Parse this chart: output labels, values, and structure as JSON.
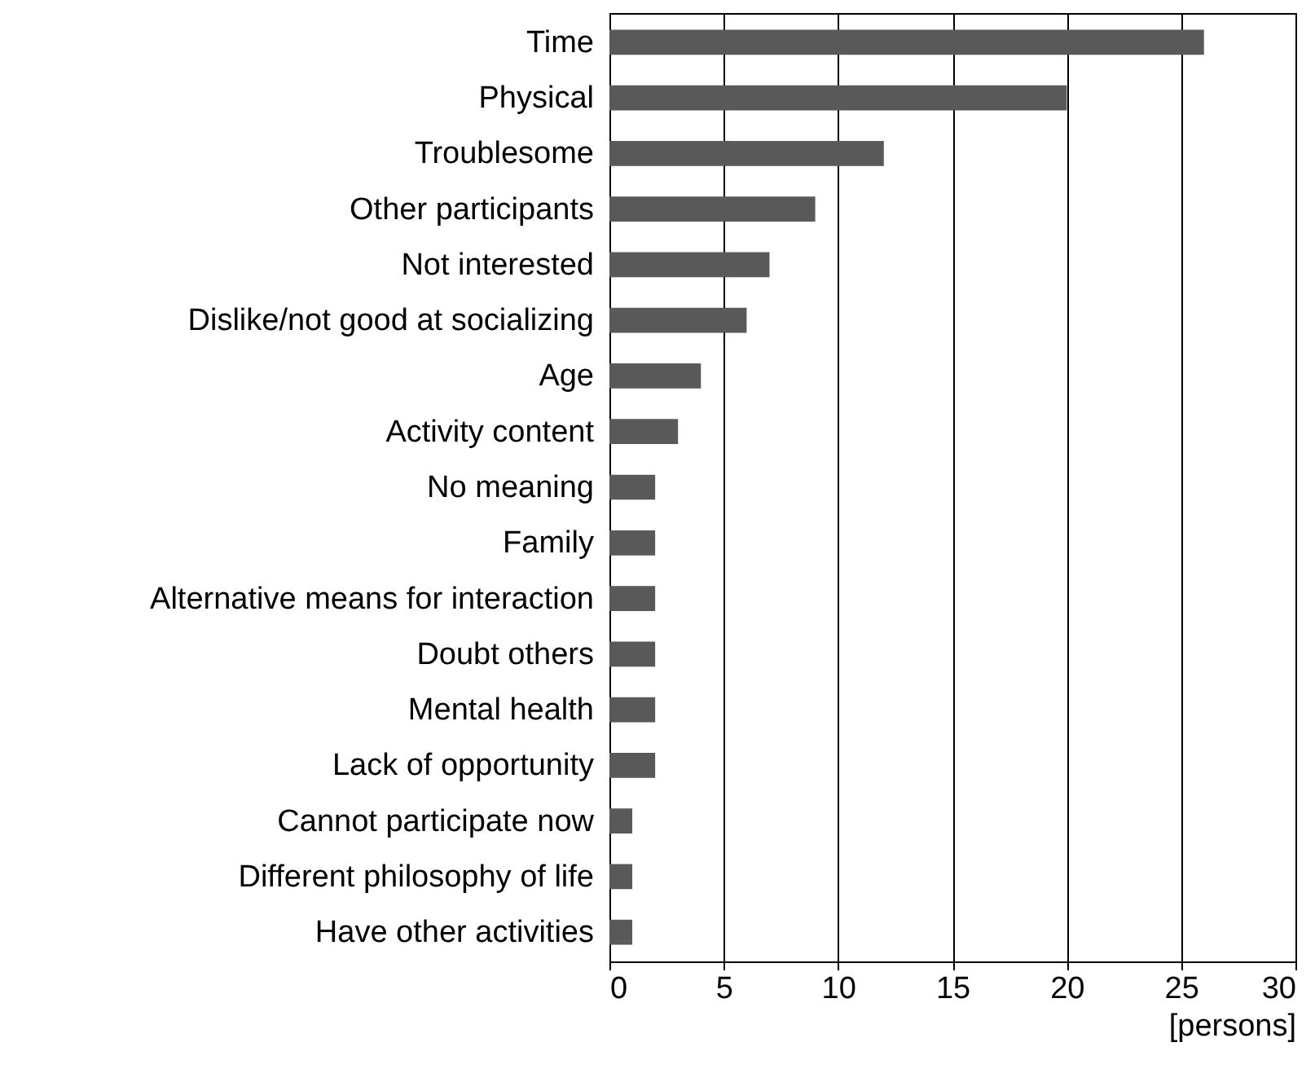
{
  "chart_data": {
    "type": "bar",
    "orientation": "horizontal",
    "xlabel": "[persons]",
    "categories": [
      "Time",
      "Physical",
      "Troublesome",
      "Other participants",
      "Not interested",
      "Dislike/not good at socializing",
      "Age",
      "Activity content",
      "No meaning",
      "Family",
      "Alternative means for interaction",
      "Doubt others",
      "Mental health",
      "Lack of opportunity",
      "Cannot participate now",
      "Different philosophy of life",
      "Have other activities"
    ],
    "values": [
      26,
      20,
      12,
      9,
      7,
      6,
      4,
      3,
      2,
      2,
      2,
      2,
      2,
      2,
      1,
      1,
      1
    ],
    "color": "#595959",
    "xlim": [
      0,
      30
    ],
    "xticks": [
      0,
      5,
      10,
      15,
      20,
      25,
      30
    ],
    "grid": "x"
  }
}
